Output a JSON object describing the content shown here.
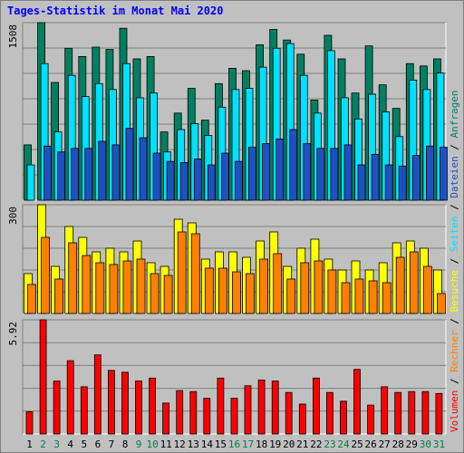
{
  "title": "Tages-Statistik im Monat Mai 2020",
  "colors": {
    "background": "#c0c0c0",
    "title": "#0000ff",
    "anfragen": "#008060",
    "dateien": "#00e0ff",
    "seiten": "#2050c0",
    "besuche": "#ffff00",
    "rechner": "#ff8000",
    "volumen": "#ff0000",
    "weekday_label": "#000000",
    "weekend_label": "#008040"
  },
  "legend": [
    {
      "text": "Volumen",
      "color": "#ff0000"
    },
    {
      "text": " / ",
      "color": "#000000"
    },
    {
      "text": "Rechner",
      "color": "#ff8000"
    },
    {
      "text": " / ",
      "color": "#000000"
    },
    {
      "text": "Besuche",
      "color": "#ffff00"
    },
    {
      "text": " / ",
      "color": "#000000"
    },
    {
      "text": "Seiten",
      "color": "#00e0ff"
    },
    {
      "text": " / ",
      "color": "#000000"
    },
    {
      "text": "Dateien",
      "color": "#2050c0"
    },
    {
      "text": " / ",
      "color": "#000000"
    },
    {
      "text": "Anfragen",
      "color": "#008060"
    }
  ],
  "chart_data": {
    "type": "bar",
    "categories": [
      "1",
      "2",
      "3",
      "4",
      "5",
      "6",
      "7",
      "8",
      "9",
      "10",
      "11",
      "12",
      "13",
      "14",
      "15",
      "16",
      "17",
      "18",
      "19",
      "20",
      "21",
      "22",
      "23",
      "24",
      "25",
      "26",
      "27",
      "28",
      "29",
      "30",
      "31"
    ],
    "weekend_days": [
      "2",
      "3",
      "9",
      "10",
      "16",
      "17",
      "23",
      "24",
      "30",
      "31"
    ],
    "panels": [
      {
        "name": "hits",
        "ymax_label": "1508",
        "ylim": [
          0,
          1508
        ],
        "series": [
          {
            "name": "Anfragen",
            "values": [
              470,
              1508,
              1000,
              1290,
              1220,
              1300,
              1280,
              1460,
              1200,
              1220,
              580,
              740,
              950,
              680,
              990,
              1120,
              1100,
              1320,
              1450,
              1360,
              1240,
              850,
              1400,
              1200,
              910,
              1310,
              980,
              780,
              1160,
              1140,
              1200
            ]
          },
          {
            "name": "Dateien",
            "values": [
              300,
              1160,
              580,
              1060,
              880,
              990,
              940,
              1160,
              870,
              910,
              410,
              600,
              650,
              550,
              790,
              940,
              950,
              1130,
              1290,
              1330,
              1060,
              740,
              1270,
              870,
              690,
              900,
              750,
              540,
              1020,
              940,
              1080
            ]
          },
          {
            "name": "Seiten",
            "values": [
              0,
              460,
              410,
              440,
              440,
              500,
              470,
              610,
              530,
              400,
              330,
              320,
              350,
              300,
              400,
              330,
              450,
              480,
              520,
              600,
              480,
              440,
              440,
              470,
              300,
              390,
              300,
              290,
              380,
              460,
              450
            ]
          }
        ]
      },
      {
        "name": "visits",
        "ymax_label": "300",
        "ylim": [
          0,
          300
        ],
        "series": [
          {
            "name": "Besuche",
            "values": [
              110,
              300,
              130,
              240,
              210,
              170,
              180,
              170,
              200,
              140,
              130,
              260,
              250,
              150,
              170,
              170,
              155,
              200,
              225,
              130,
              180,
              205,
              150,
              120,
              145,
              120,
              140,
              195,
              200,
              180,
              120
            ]
          },
          {
            "name": "Rechner",
            "values": [
              80,
              210,
              95,
              195,
              160,
              140,
              135,
              145,
              150,
              110,
              105,
              225,
              220,
              125,
              125,
              115,
              110,
              150,
              165,
              95,
              140,
              145,
              120,
              85,
              95,
              90,
              85,
              155,
              170,
              130,
              55
            ]
          }
        ]
      },
      {
        "name": "volume",
        "ymax_label": "5.92",
        "ylim": [
          0,
          5.92
        ],
        "series": [
          {
            "name": "Volumen",
            "values": [
              1.15,
              5.92,
              2.75,
              3.8,
              2.45,
              4.1,
              3.3,
              3.2,
              2.75,
              2.9,
              1.6,
              2.25,
              2.2,
              1.85,
              2.9,
              1.85,
              2.5,
              2.8,
              2.75,
              2.15,
              1.55,
              2.9,
              2.15,
              1.7,
              3.35,
              1.5,
              2.45,
              2.15,
              2.2,
              2.2,
              2.1
            ]
          }
        ]
      }
    ]
  }
}
